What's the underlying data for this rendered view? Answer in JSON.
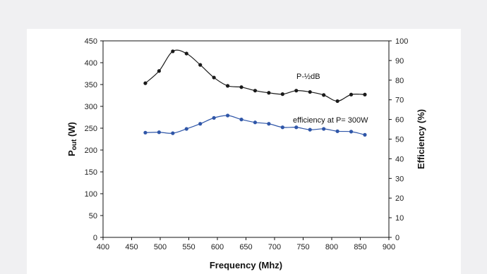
{
  "chart_data": {
    "type": "line",
    "title": "",
    "xlabel": "Frequency (Mhz)",
    "ylabel_left": {
      "main": "P",
      "sub": "out",
      "unit": " (W)"
    },
    "ylabel_right": "Efficiency (%)",
    "xlim": [
      400,
      900
    ],
    "ylim_left": [
      0,
      450
    ],
    "ylim_right": [
      0,
      100
    ],
    "x_ticks": [
      "400",
      "450",
      "500",
      "550",
      "600",
      "650",
      "700",
      "750",
      "800",
      "850",
      "900"
    ],
    "y_left_ticks": [
      "0",
      "50",
      "100",
      "150",
      "200",
      "250",
      "300",
      "350",
      "400",
      "450"
    ],
    "y_right_ticks": [
      "0",
      "10",
      "20",
      "30",
      "40",
      "50",
      "60",
      "70",
      "80",
      "90",
      "100"
    ],
    "grid": false,
    "series": [
      {
        "name": "P-½dB",
        "axis": "left",
        "color": "#1a1a1a",
        "x": [
          474,
          498,
          522,
          546,
          570,
          594,
          618,
          642,
          666,
          690,
          714,
          738,
          762,
          786,
          810,
          834,
          858
        ],
        "y": [
          353,
          381,
          426,
          421,
          395,
          366,
          347,
          344,
          336,
          331,
          328,
          336,
          333,
          326,
          312,
          327,
          327
        ]
      },
      {
        "name": "efficiency at P= 300W",
        "axis": "right",
        "color": "#2f56a8",
        "x": [
          474,
          498,
          522,
          546,
          570,
          594,
          618,
          642,
          666,
          690,
          714,
          738,
          762,
          786,
          810,
          834,
          858
        ],
        "y": [
          53.3,
          53.5,
          53.0,
          55.2,
          57.8,
          60.8,
          62.0,
          60.0,
          58.5,
          57.8,
          56.0,
          56.0,
          54.8,
          55.2,
          54.0,
          53.8,
          52.2
        ]
      }
    ]
  }
}
